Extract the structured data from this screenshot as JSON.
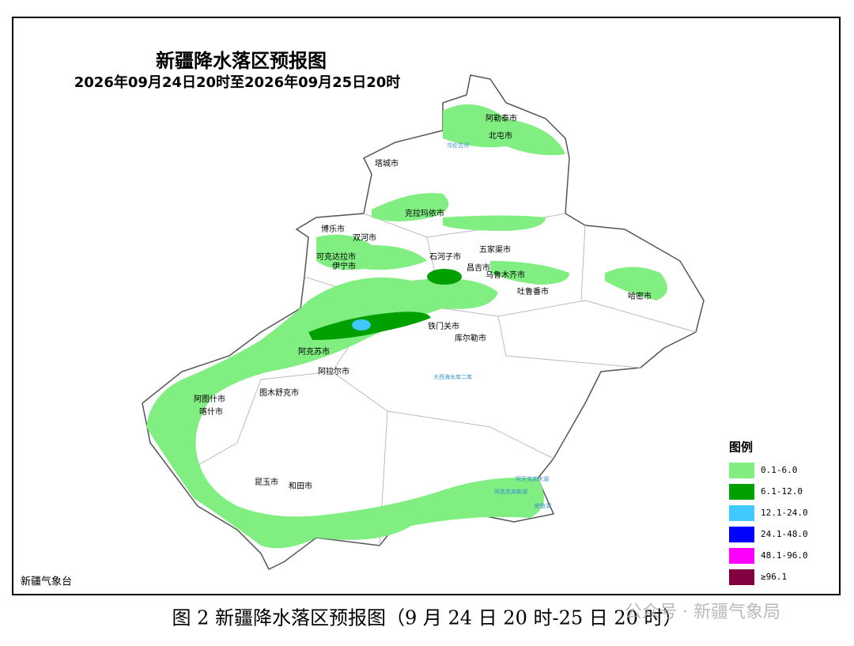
{
  "header": {
    "title": "新疆降水落区预报图",
    "subtitle": "2026年09月24日20时至2026年09月25日20时"
  },
  "cities": [
    "阿勒泰市",
    "北屯市",
    "塔城市",
    "克拉玛依市",
    "博乐市",
    "双河市",
    "可克达拉市",
    "伊宁市",
    "石河子市",
    "五家渠市",
    "昌吉市",
    "乌鲁木齐市",
    "吐鲁番市",
    "哈密市",
    "铁门关市",
    "库尔勒市",
    "阿克苏市",
    "阿拉尔市",
    "阿图什市",
    "图木舒克市",
    "喀什市",
    "昆玉市",
    "和田市"
  ],
  "water_labels": [
    "乌伦古河",
    "大西海水库二库",
    "阿牙克库木湖",
    "阿其克库勒湖",
    "鲸鱼湖"
  ],
  "legend": {
    "title": "图例",
    "items": [
      {
        "label": "0.1-6.0",
        "color": "#80ee80"
      },
      {
        "label": "6.1-12.0",
        "color": "#00a000"
      },
      {
        "label": "12.1-24.0",
        "color": "#40c8ff"
      },
      {
        "label": "24.1-48.0",
        "color": "#0000ff"
      },
      {
        "label": "48.1-96.0",
        "color": "#ff00ff"
      },
      {
        "label": "≥96.1",
        "color": "#800040"
      }
    ]
  },
  "footer": {
    "agency": "新疆气象台"
  },
  "caption": "图 2 新疆降水落区预报图（9 月 24 日 20 时-25 日 20 时）",
  "watermark": "公众号 · 新疆气象局"
}
